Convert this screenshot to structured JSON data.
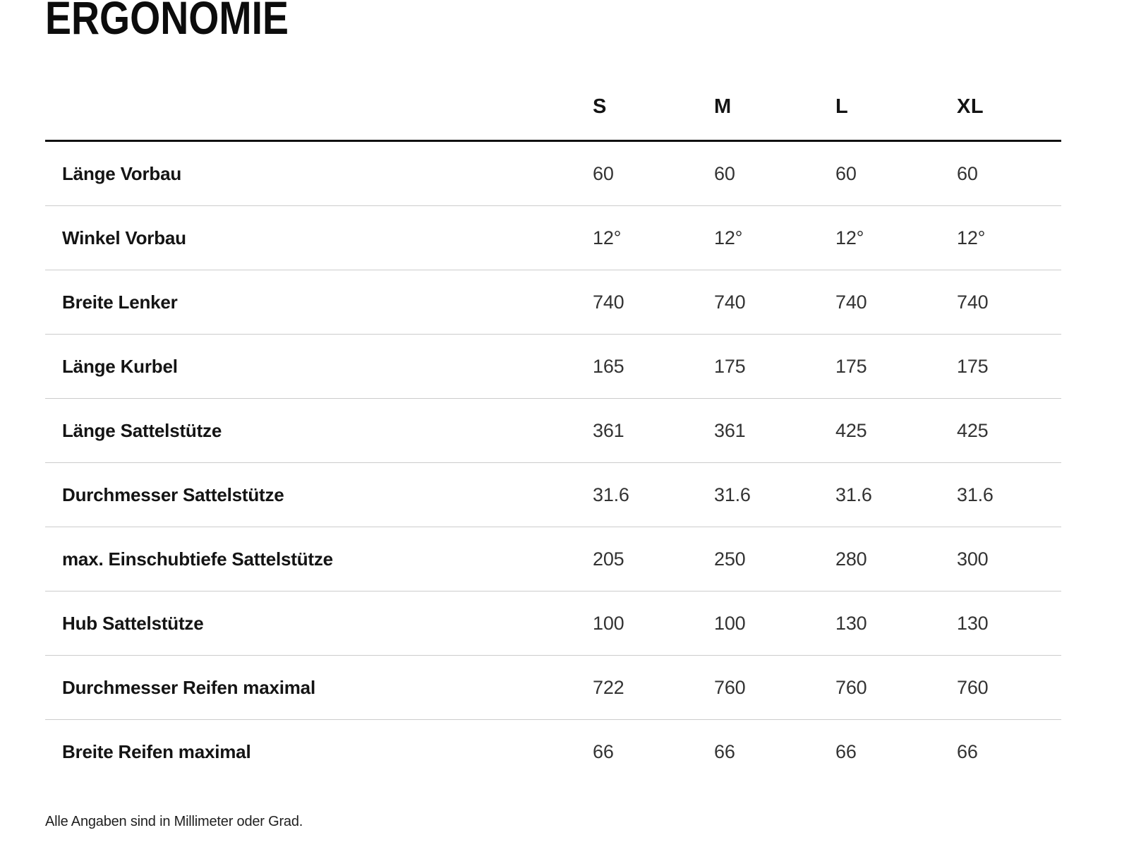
{
  "page": {
    "title": "ERGONOMIE",
    "footnote": "Alle Angaben sind in Millimeter oder Grad."
  },
  "colors": {
    "text_primary": "#111111",
    "text_values": "#333333",
    "header_rule": "#111111",
    "row_divider": "#cccccc",
    "background": "#ffffff"
  },
  "table": {
    "columns": [
      "S",
      "M",
      "L",
      "XL"
    ],
    "rows": [
      {
        "label": "Länge Vorbau",
        "values": [
          "60",
          "60",
          "60",
          "60"
        ]
      },
      {
        "label": "Winkel Vorbau",
        "values": [
          "12°",
          "12°",
          "12°",
          "12°"
        ]
      },
      {
        "label": "Breite Lenker",
        "values": [
          "740",
          "740",
          "740",
          "740"
        ]
      },
      {
        "label": "Länge Kurbel",
        "values": [
          "165",
          "175",
          "175",
          "175"
        ]
      },
      {
        "label": "Länge Sattelstütze",
        "values": [
          "361",
          "361",
          "425",
          "425"
        ]
      },
      {
        "label": "Durchmesser Sattelstütze",
        "values": [
          "31.6",
          "31.6",
          "31.6",
          "31.6"
        ]
      },
      {
        "label": "max. Einschubtiefe Sattelstütze",
        "values": [
          "205",
          "250",
          "280",
          "300"
        ]
      },
      {
        "label": "Hub Sattelstütze",
        "values": [
          "100",
          "100",
          "130",
          "130"
        ]
      },
      {
        "label": "Durchmesser Reifen maximal",
        "values": [
          "722",
          "760",
          "760",
          "760"
        ]
      },
      {
        "label": "Breite Reifen maximal",
        "values": [
          "66",
          "66",
          "66",
          "66"
        ]
      }
    ]
  }
}
